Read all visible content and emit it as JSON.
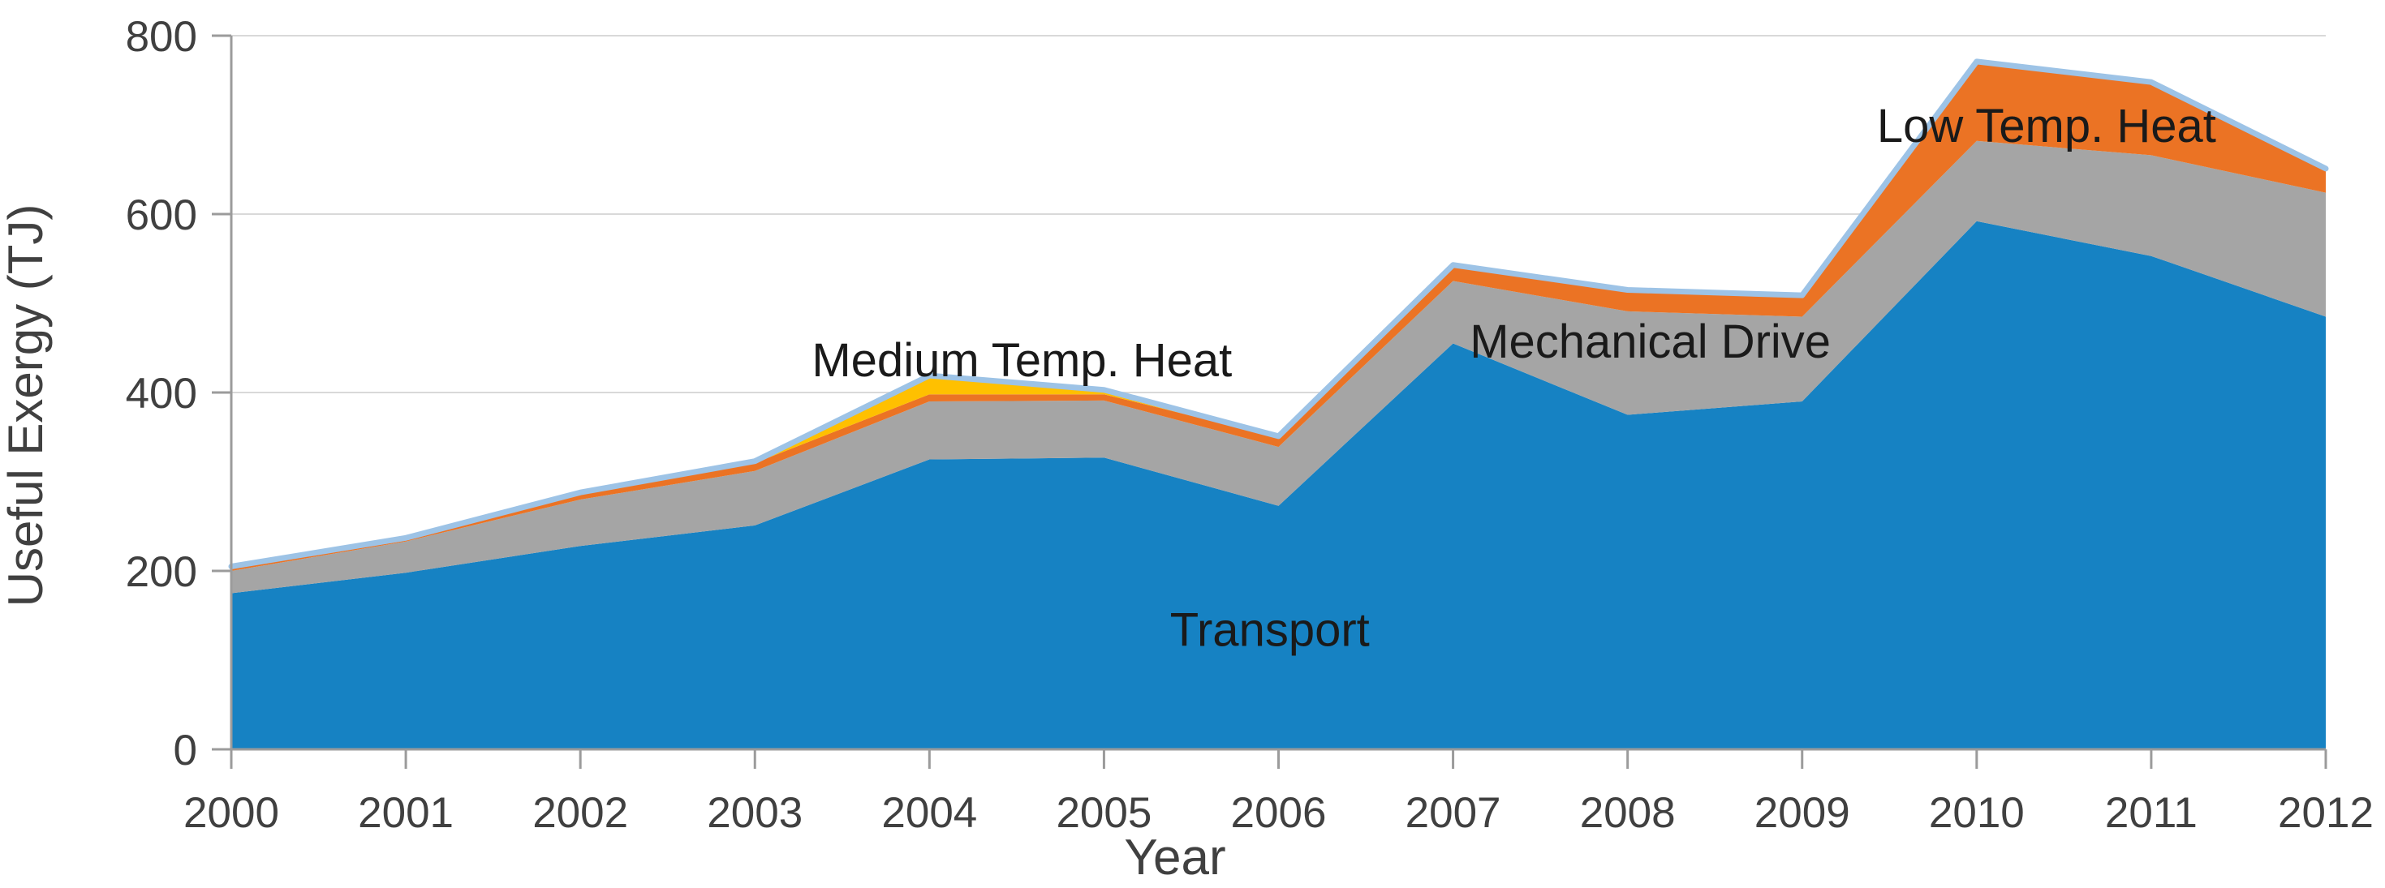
{
  "background_color": "#ffffff",
  "chart_data": {
    "type": "area",
    "stacked": true,
    "title": "",
    "xlabel": "Year",
    "ylabel": "Useful Exergy (TJ)",
    "categories": [
      2000,
      2001,
      2002,
      2003,
      2004,
      2005,
      2006,
      2007,
      2008,
      2009,
      2010,
      2011,
      2012
    ],
    "series": [
      {
        "name": "Transport",
        "color": "#1682c3",
        "values": [
          175,
          198,
          228,
          251,
          325,
          327,
          273,
          455,
          375,
          390,
          592,
          553,
          485
        ]
      },
      {
        "name": "Mechanical Drive",
        "color": "#a5a5a5",
        "values": [
          25,
          35,
          52,
          61,
          65,
          64,
          66,
          70,
          116,
          95,
          90,
          113,
          139
        ]
      },
      {
        "name": "Low Temp. Heat",
        "color": "#eb7324",
        "values": [
          5,
          4,
          7,
          9,
          8,
          7,
          11,
          18,
          24,
          24,
          89,
          82,
          27
        ]
      },
      {
        "name": "Medium Temp. Heat",
        "color": "#ffc000",
        "values": [
          0,
          0,
          1,
          2,
          21,
          5,
          1,
          0,
          0,
          0,
          0,
          0,
          0
        ]
      }
    ],
    "ylim": [
      0,
      800
    ],
    "yticks": [
      "0",
      "200",
      "400",
      "600",
      "800"
    ],
    "ytick_values": [
      0,
      200,
      400,
      600,
      800
    ],
    "xticks": [
      "2000",
      "2001",
      "2002",
      "2003",
      "2004",
      "2005",
      "2006",
      "2007",
      "2008",
      "2009",
      "2010",
      "2011",
      "2012"
    ],
    "grid": true,
    "legend": "none",
    "annotations": [
      {
        "text": "Medium Temp. Heat",
        "year": 2004.53,
        "value": 437
      },
      {
        "text": "Mechanical Drive",
        "year": 2008.13,
        "value": 458
      },
      {
        "text": "Low Temp. Heat",
        "year": 2010.4,
        "value": 700
      },
      {
        "text": "Transport",
        "year": 2005.95,
        "value": 135
      }
    ],
    "style": {
      "top_edge_color": "#9dc3e6",
      "gridline_color": "#d9d9d9",
      "axis_line_color": "#9b9b9b",
      "tick_color": "#9b9b9b",
      "tick_label_color": "#404040",
      "axis_title_color": "#404040",
      "annotation_color": "#1a1a1a"
    }
  }
}
